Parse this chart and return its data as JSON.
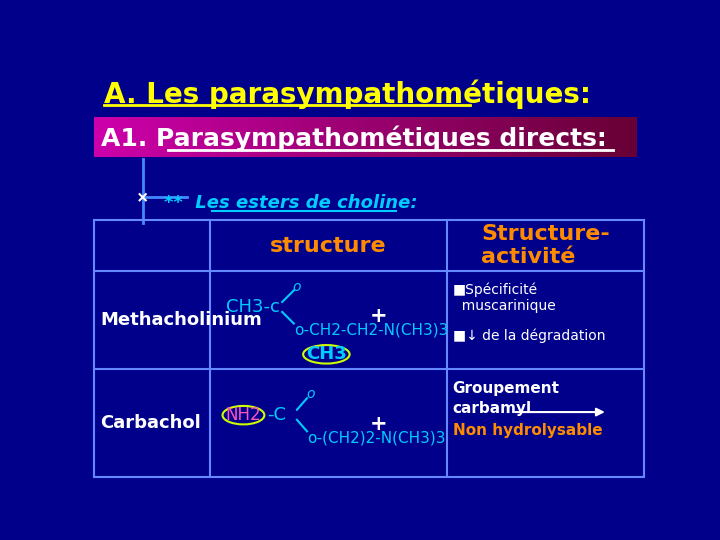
{
  "bg_color": "#00008B",
  "title": "A. Les parasympathométiques:",
  "title_color": "#FFFF00",
  "subtitle_text": "A1. Parasympathométiques directs:",
  "subtitle_color": "#FFFFFF",
  "bullet_color": "#00CCFF",
  "header_color": "#FF8C00",
  "table_border_color": "#6688FF",
  "row1_label": "Methacholinium",
  "row2_label": "Carbachol",
  "label_color": "#FFFFFF",
  "cyan_color": "#00CCFF",
  "orange_color": "#FF8C00",
  "white": "#FFFFFF",
  "pink": "#FF55BB",
  "green_yellow": "#CCFF00"
}
